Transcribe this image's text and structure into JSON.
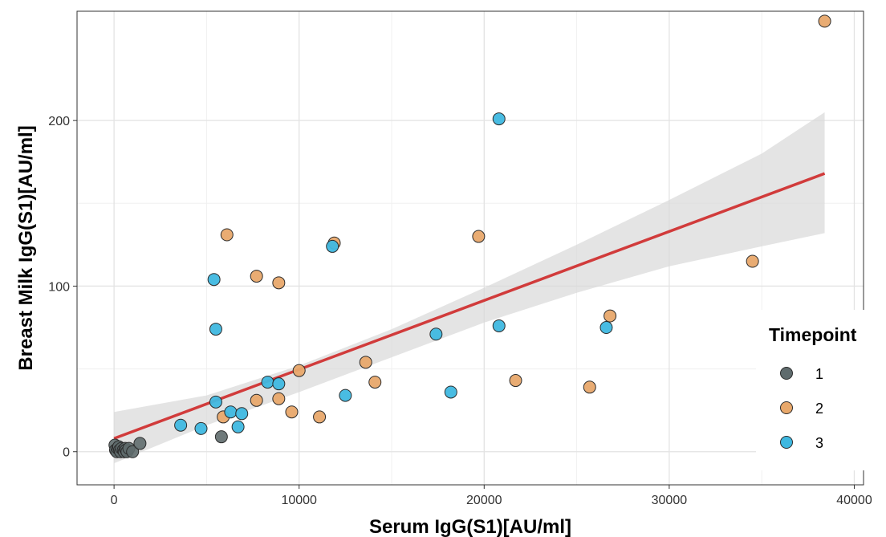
{
  "chart_data": {
    "type": "scatter",
    "xlabel": "Serum IgG(S1)[AU/ml]",
    "ylabel": "Breast Milk IgG(S1)[AU/ml]",
    "xlim": [
      -2000,
      40500
    ],
    "ylim": [
      -20,
      266
    ],
    "x_ticks": [
      0,
      10000,
      20000,
      30000,
      40000
    ],
    "x_tick_labels": [
      "0",
      "10000",
      "20000",
      "30000",
      "40000"
    ],
    "y_ticks": [
      0,
      100,
      200
    ],
    "y_tick_labels": [
      "0",
      "100",
      "200"
    ],
    "grid": true,
    "legend": {
      "title": "Timepoint",
      "position": "right",
      "entries": [
        "1",
        "2",
        "3"
      ]
    },
    "series": [
      {
        "name": "1",
        "color": "#5f6b6d",
        "points": [
          [
            50,
            4
          ],
          [
            80,
            1
          ],
          [
            150,
            0
          ],
          [
            200,
            2
          ],
          [
            250,
            3
          ],
          [
            300,
            1
          ],
          [
            350,
            0
          ],
          [
            400,
            2
          ],
          [
            500,
            1
          ],
          [
            550,
            0
          ],
          [
            600,
            2
          ],
          [
            650,
            1
          ],
          [
            700,
            0
          ],
          [
            800,
            2
          ],
          [
            1000,
            0
          ],
          [
            1400,
            5
          ],
          [
            5800,
            9
          ]
        ]
      },
      {
        "name": "2",
        "color": "#e8a86b",
        "points": [
          [
            38400,
            260
          ],
          [
            6100,
            131
          ],
          [
            7700,
            106
          ],
          [
            8900,
            102
          ],
          [
            11900,
            126
          ],
          [
            19700,
            130
          ],
          [
            34500,
            115
          ],
          [
            26800,
            82
          ],
          [
            10000,
            49
          ],
          [
            13600,
            54
          ],
          [
            14100,
            42
          ],
          [
            21700,
            43
          ],
          [
            25700,
            39
          ],
          [
            7700,
            31
          ],
          [
            8900,
            32
          ],
          [
            9600,
            24
          ],
          [
            11100,
            21
          ],
          [
            5900,
            21
          ]
        ]
      },
      {
        "name": "3",
        "color": "#3fb8e0",
        "points": [
          [
            20800,
            201
          ],
          [
            11800,
            124
          ],
          [
            5400,
            104
          ],
          [
            5500,
            74
          ],
          [
            20800,
            76
          ],
          [
            26600,
            75
          ],
          [
            17400,
            71
          ],
          [
            8300,
            42
          ],
          [
            8900,
            41
          ],
          [
            12500,
            34
          ],
          [
            18200,
            36
          ],
          [
            5500,
            30
          ],
          [
            6300,
            24
          ],
          [
            6900,
            23
          ],
          [
            3600,
            16
          ],
          [
            4700,
            14
          ],
          [
            6700,
            15
          ]
        ]
      }
    ],
    "fit": {
      "color": "#d13b3b",
      "line": [
        [
          0,
          8
        ],
        [
          38400,
          168
        ]
      ],
      "ci": {
        "color": "#d9d9d9",
        "upper": [
          [
            0,
            24
          ],
          [
            5000,
            34
          ],
          [
            10000,
            52
          ],
          [
            15000,
            74
          ],
          [
            20000,
            99
          ],
          [
            25000,
            125
          ],
          [
            30000,
            152
          ],
          [
            35000,
            180
          ],
          [
            38400,
            205
          ]
        ],
        "lower": [
          [
            0,
            -7
          ],
          [
            5000,
            16
          ],
          [
            10000,
            36
          ],
          [
            15000,
            57
          ],
          [
            20000,
            78
          ],
          [
            25000,
            96
          ],
          [
            30000,
            112
          ],
          [
            35000,
            124
          ],
          [
            38400,
            132
          ]
        ]
      }
    }
  }
}
